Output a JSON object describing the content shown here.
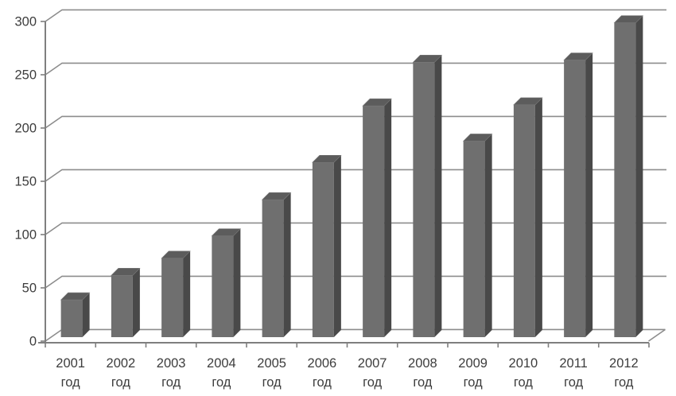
{
  "chart": {
    "colors": {
      "background": "#ffffff",
      "bar_front": "#6f6f6f",
      "bar_top": "#5c5c5c",
      "bar_side": "#494949",
      "gridline": "#8c8c8c",
      "axis": "#7f7f7f",
      "label_text": "#3d3d3d"
    }
  },
  "chart_data": {
    "type": "bar",
    "style": "3d-column",
    "title": "",
    "xlabel": "",
    "ylabel": "",
    "categories": [
      "2001",
      "2002",
      "2003",
      "2004",
      "2005",
      "2006",
      "2007",
      "2008",
      "2009",
      "2010",
      "2011",
      "2012"
    ],
    "category_label_suffix": "год",
    "values": [
      35,
      58,
      74,
      95,
      129,
      164,
      217,
      258,
      184,
      218,
      260,
      295
    ],
    "ylim": [
      0,
      300
    ],
    "ytick_interval": 50,
    "ytick_labels": [
      "0",
      "50",
      "100",
      "150",
      "200",
      "250",
      "300"
    ],
    "grid": true,
    "legend": false,
    "layout": {
      "legend_position": "none",
      "x_labels_two_lines": true
    }
  }
}
